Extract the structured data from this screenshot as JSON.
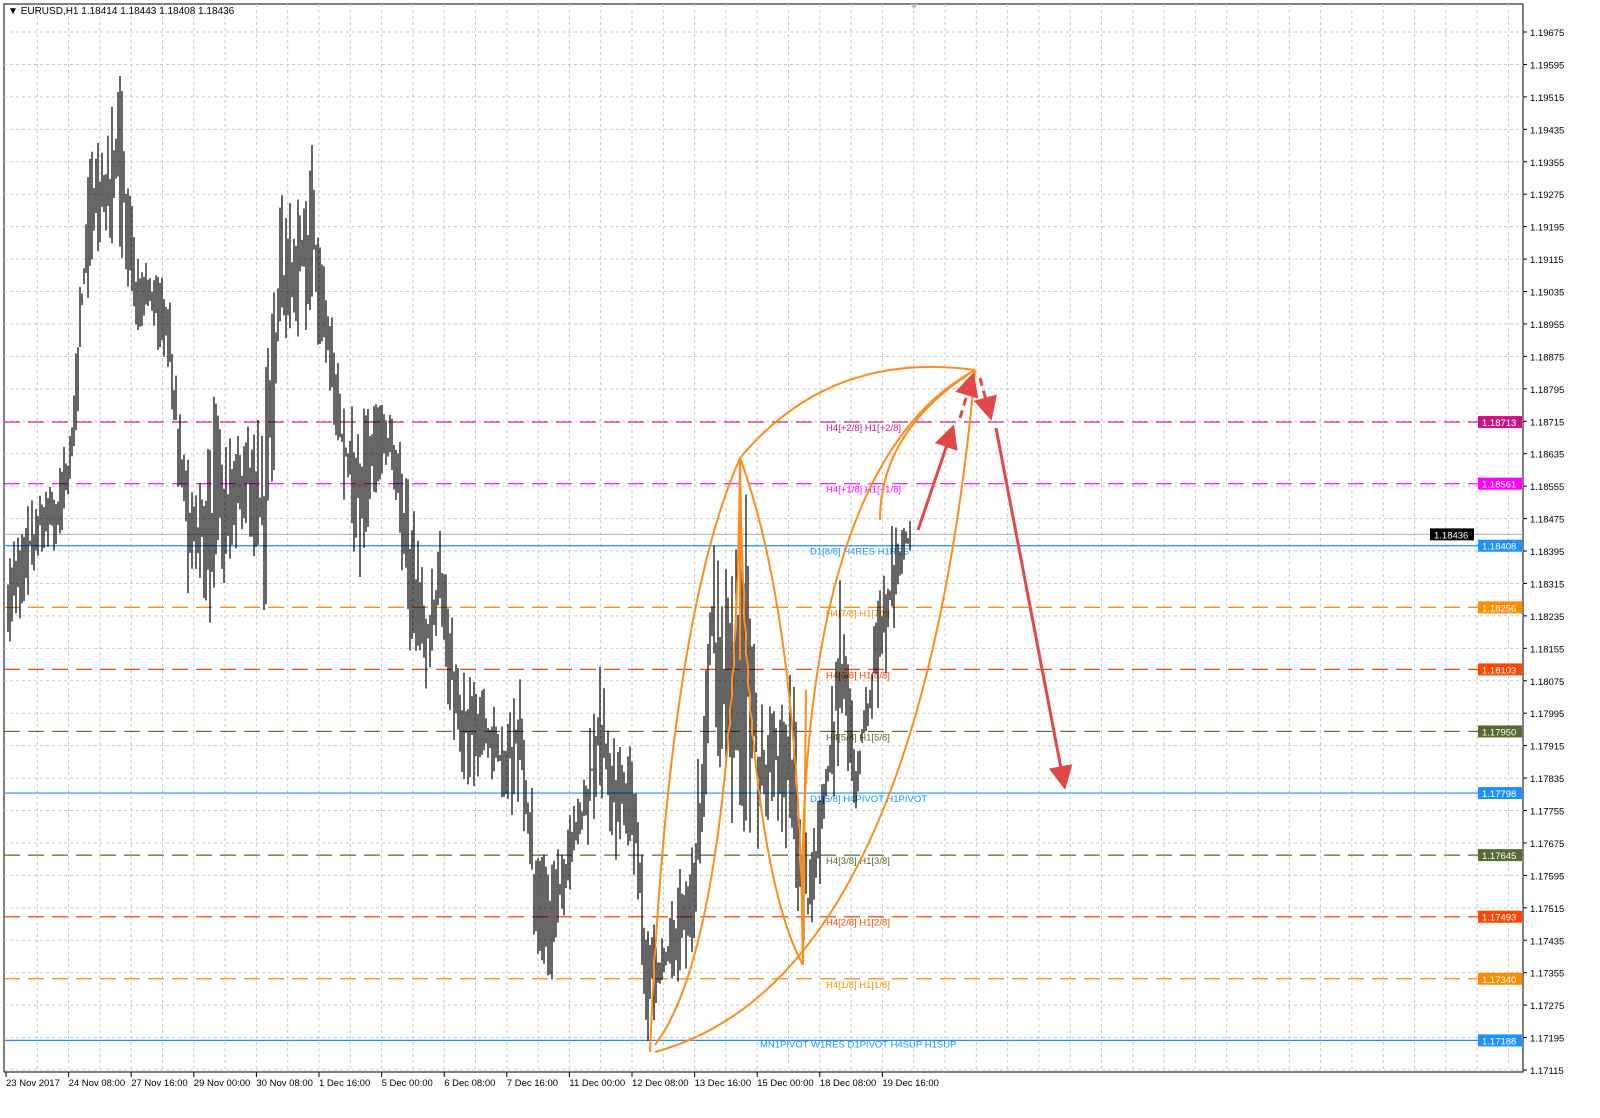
{
  "header": {
    "symbol": "EURUSD,H1",
    "ohlc": "1.18414 1.18443 1.18408 1.18436"
  },
  "chart_data": {
    "type": "bar",
    "title": "EURUSD,H1",
    "ylim": [
      1.17115,
      1.19675
    ],
    "grid": true,
    "y_ticks": [
      "1.19675",
      "1.19595",
      "1.19515",
      "1.19435",
      "1.19355",
      "1.19275",
      "1.19195",
      "1.19115",
      "1.19035",
      "1.18955",
      "1.18875",
      "1.18795",
      "1.18715",
      "1.18635",
      "1.18555",
      "1.18475",
      "1.18395",
      "1.18315",
      "1.18235",
      "1.18155",
      "1.18075",
      "1.17995",
      "1.17915",
      "1.17835",
      "1.17755",
      "1.17675",
      "1.17595",
      "1.17515",
      "1.17435",
      "1.17355",
      "1.17275",
      "1.17195",
      "1.17115"
    ],
    "x_ticks": [
      "23 Nov 2017",
      "24 Nov 08:00",
      "27 Nov 16:00",
      "29 Nov 00:00",
      "30 Nov 08:00",
      "1 Dec 16:00",
      "5 Dec 00:00",
      "6 Dec 08:00",
      "7 Dec 16:00",
      "11 Dec 00:00",
      "12 Dec 08:00",
      "13 Dec 16:00",
      "15 Dec 00:00",
      "18 Dec 08:00",
      "19 Dec 16:00"
    ],
    "high_low": [
      [
        1.18373,
        1.18126
      ],
      [
        1.18521,
        1.1825
      ],
      [
        1.18546,
        1.18373
      ],
      [
        1.1857,
        1.18373
      ],
      [
        1.18743,
        1.18546
      ],
      [
        1.19433,
        1.19014
      ],
      [
        1.19384,
        1.19113
      ],
      [
        1.19606,
        1.19137
      ],
      [
        1.19137,
        1.1894
      ],
      [
        1.19088,
        1.1894
      ],
      [
        1.19063,
        1.18792
      ],
      [
        1.18767,
        1.18274
      ],
      [
        1.1857,
        1.18274
      ],
      [
        1.18817,
        1.18176
      ],
      [
        1.18669,
        1.18373
      ],
      [
        1.18718,
        1.18472
      ],
      [
        1.18817,
        1.18102
      ],
      [
        1.1931,
        1.18817
      ],
      [
        1.1926,
        1.18891
      ],
      [
        1.19408,
        1.1894
      ],
      [
        1.19039,
        1.18817
      ],
      [
        1.18767,
        1.18521
      ],
      [
        1.18743,
        1.18299
      ],
      [
        1.18767,
        1.18521
      ],
      [
        1.18767,
        1.1857
      ],
      [
        1.18595,
        1.18151
      ],
      [
        1.18324,
        1.18028
      ],
      [
        1.18472,
        1.18151
      ],
      [
        1.18151,
        1.17855
      ],
      [
        1.18077,
        1.17806
      ],
      [
        1.18052,
        1.17855
      ],
      [
        1.17978,
        1.17756
      ],
      [
        1.18151,
        1.17732
      ],
      [
        1.17707,
        1.17387
      ],
      [
        1.17633,
        1.17313
      ],
      [
        1.17732,
        1.17535
      ],
      [
        1.1788,
        1.17633
      ],
      [
        1.18126,
        1.17781
      ],
      [
        1.17929,
        1.17633
      ],
      [
        1.17929,
        1.17658
      ],
      [
        1.17535,
        1.17165
      ],
      [
        1.17436,
        1.17288
      ],
      [
        1.17633,
        1.17313
      ],
      [
        1.1783,
        1.17387
      ],
      [
        1.18422,
        1.17978
      ],
      [
        1.18373,
        1.17732
      ],
      [
        1.1862,
        1.17633
      ],
      [
        1.18028,
        1.17633
      ],
      [
        1.18028,
        1.17756
      ],
      [
        1.18126,
        1.17535
      ],
      [
        1.17658,
        1.17387
      ],
      [
        1.1788,
        1.17633
      ],
      [
        1.18324,
        1.1788
      ],
      [
        1.17929,
        1.17756
      ],
      [
        1.18176,
        1.17978
      ],
      [
        1.18472,
        1.18052
      ],
      [
        1.18472,
        1.18373
      ]
    ],
    "current_price": {
      "value": "1.18436",
      "color": "#000000"
    },
    "levels": [
      {
        "price": 1.18713,
        "tag": "1.18713",
        "label": "H4[+2/8] H1[+2/8]",
        "color": "#c71585",
        "style": "dashed"
      },
      {
        "price": 1.18561,
        "tag": "1.18561",
        "label": "H4[+1/8] H1[+1/8]",
        "color": "#ff00ff",
        "style": "dashed"
      },
      {
        "price": 1.18408,
        "tag": "1.18408",
        "label": "D1[8/8] H4RES H1RES",
        "color": "#1e90ff",
        "style": "solid"
      },
      {
        "price": 1.18256,
        "tag": "1.18256",
        "label": "H4[7/8] H1[7/8]",
        "color": "#ff8c00",
        "style": "dashed"
      },
      {
        "price": 1.18103,
        "tag": "1.18103",
        "label": "H4[6/8] H1[6/8]",
        "color": "#ff4500",
        "style": "dashed"
      },
      {
        "price": 1.1795,
        "tag": "1.17950",
        "label": "H4[5/8] H1[5/8]",
        "color": "#556b2f",
        "style": "dashed"
      },
      {
        "price": 1.17798,
        "tag": "1.17798",
        "label": "D1[5/8] H4PIVOT H1PIVOT",
        "color": "#1e90ff",
        "style": "solid"
      },
      {
        "price": 1.17645,
        "tag": "1.17645",
        "label": "H4[3/8] H1[3/8]",
        "color": "#556b2f",
        "style": "dashed"
      },
      {
        "price": 1.17493,
        "tag": "1.17493",
        "label": "H4[2/8] H1[2/8]",
        "color": "#ff4500",
        "style": "dashed"
      },
      {
        "price": 1.1734,
        "tag": "1.17340",
        "label": "H4[1/8] H1[1/8]",
        "color": "#ff8c00",
        "style": "dashed"
      },
      {
        "price": 1.17188,
        "tag": "1.17188",
        "label": "MN1PIVOT W1RES D1PIVOT H4SUP H1SUP",
        "color": "#1e90ff",
        "style": "solid"
      }
    ],
    "annotation_colors": {
      "curves": "#ff8c1a",
      "arrows": "#e04848"
    }
  }
}
